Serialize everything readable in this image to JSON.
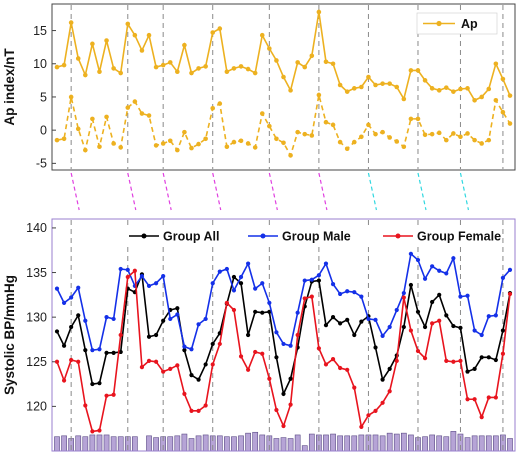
{
  "chart_data": [
    {
      "type": "line",
      "ylabel": "Ap index/nT",
      "ylim": [
        -6,
        19
      ],
      "yticks": [
        -5,
        0,
        5,
        10,
        15
      ],
      "grid": false,
      "legend_position": "top-right",
      "x": [
        1,
        2,
        3,
        4,
        5,
        6,
        7,
        8,
        9,
        10,
        11,
        12,
        13,
        14,
        15,
        16,
        17,
        18,
        19,
        20,
        21,
        22,
        23,
        24,
        25,
        26,
        27,
        28,
        29,
        30,
        31,
        32,
        33,
        34,
        35,
        36,
        37,
        38,
        39,
        40,
        41,
        42,
        43,
        44,
        45,
        46,
        47,
        48,
        49,
        50,
        51,
        52,
        53,
        54,
        55,
        56,
        57,
        58,
        59,
        60,
        61,
        62,
        63,
        64,
        65
      ],
      "series": [
        {
          "name": "Ap",
          "color": "#EDB120",
          "style": "solid",
          "values": [
            9.5,
            9.8,
            16.2,
            10.8,
            8.3,
            13.0,
            8.8,
            13.5,
            9.3,
            8.6,
            16.0,
            14.3,
            12.0,
            14.3,
            9.5,
            9.8,
            10.2,
            8.8,
            12.8,
            8.6,
            9.3,
            9.6,
            14.7,
            15.3,
            8.8,
            9.3,
            9.6,
            9.2,
            8.6,
            14.3,
            12.3,
            10.5,
            8.0,
            6.0,
            10.2,
            9.5,
            11.2,
            17.8,
            10.3,
            10.0,
            6.8,
            5.8,
            6.3,
            6.5,
            8.0,
            6.8,
            7.0,
            7.0,
            6.5,
            4.7,
            9.0,
            9.0,
            7.5,
            6.3,
            6.0,
            6.4,
            5.8,
            6.2,
            6.3,
            4.5,
            5.0,
            6.2,
            10.0,
            7.7,
            5.2
          ]
        },
        {
          "color": "#EDB120",
          "style": "dashed",
          "values": [
            -1.5,
            -1.3,
            5.0,
            0.2,
            -3.0,
            1.7,
            -2.5,
            2.0,
            -2.0,
            -2.6,
            3.4,
            4.3,
            2.5,
            2.2,
            -2.3,
            -2.0,
            -1.6,
            -3.0,
            -0.3,
            -2.7,
            -2.1,
            -1.3,
            3.3,
            4.0,
            -2.5,
            -1.8,
            -1.6,
            -2.0,
            -2.6,
            2.5,
            0.6,
            -1.3,
            -1.9,
            -3.8,
            -0.3,
            -0.6,
            -0.8,
            5.3,
            1.2,
            0.8,
            -1.8,
            -2.8,
            -1.8,
            -1.0,
            0.8,
            -0.6,
            -0.3,
            -1.1,
            -1.7,
            -2.5,
            1.7,
            1.7,
            -0.7,
            -0.6,
            -0.4,
            -1.5,
            -0.5,
            -1.0,
            -0.5,
            -1.5,
            -2.0,
            -1.5,
            4.5,
            2.7,
            1.0
          ]
        }
      ]
    },
    {
      "type": "line",
      "ylabel": "Systolic BP/mmHg",
      "ylim": [
        115,
        141
      ],
      "yticks": [
        120,
        125,
        130,
        135,
        140
      ],
      "grid": false,
      "legend_position": "top",
      "x": [
        1,
        2,
        3,
        4,
        5,
        6,
        7,
        8,
        9,
        10,
        11,
        12,
        13,
        14,
        15,
        16,
        17,
        18,
        19,
        20,
        21,
        22,
        23,
        24,
        25,
        26,
        27,
        28,
        29,
        30,
        31,
        32,
        33,
        34,
        35,
        36,
        37,
        38,
        39,
        40,
        41,
        42,
        43,
        44,
        45,
        46,
        47,
        48,
        49,
        50,
        51,
        52,
        53,
        54,
        55,
        56,
        57,
        58,
        59,
        60,
        61,
        62,
        63,
        64,
        65
      ],
      "series": [
        {
          "name": "Group All",
          "color": "#000000",
          "values": [
            128.4,
            126.8,
            128.9,
            130.2,
            126.3,
            122.5,
            122.6,
            126.0,
            126.0,
            126.1,
            133.2,
            132.8,
            134.8,
            127.8,
            128.0,
            129.6,
            130.8,
            131.0,
            126.3,
            123.5,
            123.0,
            124.7,
            127.0,
            128.2,
            131.5,
            134.5,
            133.8,
            128.0,
            130.6,
            130.5,
            130.6,
            125.5,
            121.4,
            123.1,
            126.6,
            131.2,
            134.0,
            134.1,
            129.1,
            130.0,
            129.3,
            129.7,
            128.0,
            129.5,
            130.1,
            126.6,
            123.0,
            124.2,
            125.7,
            128.9,
            133.6,
            130.6,
            128.9,
            131.7,
            132.5,
            130.2,
            129.0,
            128.8,
            123.9,
            124.2,
            125.5,
            125.5,
            125.2,
            128.5,
            132.7
          ]
        },
        {
          "name": "Group Male",
          "color": "#1430E8",
          "values": [
            133.2,
            131.6,
            132.2,
            133.3,
            129.6,
            126.3,
            126.4,
            130.0,
            129.8,
            135.4,
            135.3,
            133.5,
            134.6,
            133.5,
            133.8,
            134.6,
            129.8,
            130.3,
            126.7,
            126.4,
            129.2,
            129.8,
            133.8,
            135.1,
            135.4,
            133.0,
            134.5,
            136.0,
            133.2,
            133.8,
            131.6,
            128.3,
            127.0,
            126.8,
            130.5,
            134.1,
            134.2,
            134.7,
            136.0,
            133.7,
            132.6,
            132.9,
            132.8,
            132.3,
            129.8,
            129.7,
            127.9,
            128.9,
            130.8,
            132.7,
            137.1,
            136.4,
            134.3,
            135.7,
            135.2,
            134.9,
            136.6,
            132.3,
            132.4,
            128.5,
            128.0,
            130.1,
            130.2,
            134.4,
            135.3
          ]
        },
        {
          "name": "Group Female",
          "color": "#E8141E",
          "values": [
            125.0,
            122.9,
            125.2,
            125.0,
            120.1,
            117.2,
            117.3,
            121.2,
            121.3,
            128.0,
            134.5,
            135.2,
            124.4,
            125.1,
            125.0,
            123.9,
            124.2,
            124.6,
            121.4,
            119.5,
            119.5,
            120.1,
            124.7,
            127.0,
            131.6,
            130.8,
            125.6,
            124.1,
            126.1,
            125.9,
            123.1,
            119.6,
            117.8,
            120.2,
            128.0,
            132.1,
            132.3,
            126.5,
            124.7,
            125.3,
            124.3,
            124.1,
            122.1,
            117.7,
            119.0,
            119.5,
            120.4,
            121.7,
            125.1,
            132.2,
            128.5,
            126.2,
            125.4,
            129.3,
            129.6,
            125.1,
            125.0,
            125.1,
            120.8,
            120.8,
            118.8,
            121.0,
            121.0,
            125.9,
            132.6
          ]
        }
      ],
      "bars": {
        "color": "#B6A4D6",
        "edge_color": "#5B4A86",
        "values": [
          116.6,
          116.7,
          116.4,
          116.7,
          116.6,
          116.8,
          116.8,
          116.8,
          116.6,
          116.6,
          116.6,
          116.6,
          115.0,
          116.7,
          116.5,
          116.6,
          116.6,
          116.7,
          116.9,
          116.4,
          116.7,
          116.8,
          116.7,
          116.7,
          116.6,
          116.6,
          116.7,
          117.0,
          117.1,
          116.8,
          116.7,
          116.4,
          116.5,
          116.4,
          116.8,
          115.6,
          116.9,
          116.8,
          116.8,
          116.9,
          116.7,
          116.7,
          116.7,
          116.8,
          116.8,
          116.8,
          116.7,
          117.0,
          116.9,
          117.0,
          116.8,
          116.5,
          116.6,
          116.8,
          116.7,
          116.6,
          117.2,
          116.9,
          116.5,
          116.7,
          116.7,
          116.7,
          116.7,
          116.8,
          116.4
        ]
      }
    }
  ],
  "event_markers": [
    3,
    11,
    16,
    23,
    31,
    38,
    45,
    52,
    58,
    64
  ]
}
